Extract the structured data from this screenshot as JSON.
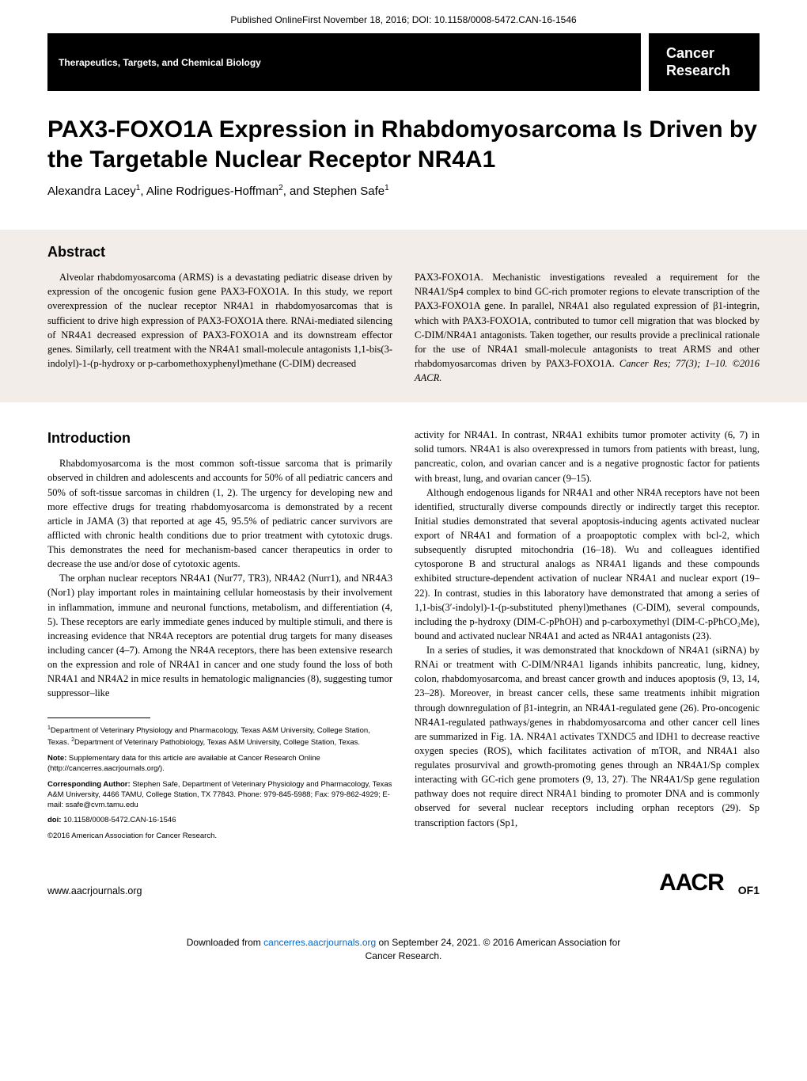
{
  "online_first": "Published OnlineFirst November 18, 2016; DOI: 10.1158/0008-5472.CAN-16-1546",
  "section_label": "Therapeutics, Targets, and Chemical Biology",
  "journal_name_l1": "Cancer",
  "journal_name_l2": "Research",
  "title": "PAX3-FOXO1A Expression in Rhabdomyosarcoma Is Driven by the Targetable Nuclear Receptor NR4A1",
  "author1": "Alexandra Lacey",
  "author1_sup": "1",
  "author2": ", Aline Rodrigues-Hoffman",
  "author2_sup": "2",
  "author3": ", and Stephen Safe",
  "author3_sup": "1",
  "abstract_heading": "Abstract",
  "abstract_left": "Alveolar rhabdomyosarcoma (ARMS) is a devastating pediatric disease driven by expression of the oncogenic fusion gene PAX3-FOXO1A. In this study, we report overexpression of the nuclear receptor NR4A1 in rhabdomyosarcomas that is sufficient to drive high expression of PAX3-FOXO1A there. RNAi-mediated silencing of NR4A1 decreased expression of PAX3-FOXO1A and its downstream effector genes. Similarly, cell treatment with the NR4A1 small-molecule antagonists 1,1-bis(3-indolyl)-1-(p-hydroxy or p-carbomethoxyphenyl)methane (C-DIM) decreased",
  "abstract_right_main": "PAX3-FOXO1A. Mechanistic investigations revealed a requirement for the NR4A1/Sp4 complex to bind GC-rich promoter regions to elevate transcription of the PAX3-FOXO1A gene. In parallel, NR4A1 also regulated expression of β1-integrin, which with PAX3-FOXO1A, contributed to tumor cell migration that was blocked by C-DIM/NR4A1 antagonists. Taken together, our results provide a preclinical rationale for the use of NR4A1 small-molecule antagonists to treat ARMS and other rhabdomyosarcomas driven by PAX3-FOXO1A. ",
  "abstract_citation": "Cancer Res; 77(3); 1–10. ©2016 AACR.",
  "intro_heading": "Introduction",
  "intro_p1": "Rhabdomyosarcoma is the most common soft-tissue sarcoma that is primarily observed in children and adolescents and accounts for 50% of all pediatric cancers and 50% of soft-tissue sarcomas in children (1, 2). The urgency for developing new and more effective drugs for treating rhabdomyosarcoma is demonstrated by a recent article in JAMA (3) that reported at age 45, 95.5% of pediatric cancer survivors are afflicted with chronic health conditions due to prior treatment with cytotoxic drugs. This demonstrates the need for mechanism-based cancer therapeutics in order to decrease the use and/or dose of cytotoxic agents.",
  "intro_p2": "The orphan nuclear receptors NR4A1 (Nur77, TR3), NR4A2 (Nurr1), and NR4A3 (Nor1) play important roles in maintaining cellular homeostasis by their involvement in inflammation, immune and neuronal functions, metabolism, and differentiation (4, 5). These receptors are early immediate genes induced by multiple stimuli, and there is increasing evidence that NR4A receptors are potential drug targets for many diseases including cancer (4–7). Among the NR4A receptors, there has been extensive research on the expression and role of NR4A1 in cancer and one study found the loss of both NR4A1 and NR4A2 in mice results in hematologic malignancies (8), suggesting tumor suppressor–like",
  "right_p1": "activity for NR4A1. In contrast, NR4A1 exhibits tumor promoter activity (6, 7) in solid tumors. NR4A1 is also overexpressed in tumors from patients with breast, lung, pancreatic, colon, and ovarian cancer and is a negative prognostic factor for patients with breast, lung, and ovarian cancer (9–15).",
  "right_p2": "Although endogenous ligands for NR4A1 and other NR4A receptors have not been identified, structurally diverse compounds directly or indirectly target this receptor. Initial studies demonstrated that several apoptosis-inducing agents activated nuclear export of NR4A1 and formation of a proapoptotic complex with bcl-2, which subsequently disrupted mitochondria (16–18). Wu and colleagues identified cytosporone B and structural analogs as NR4A1 ligands and these compounds exhibited structure-dependent activation of nuclear NR4A1 and nuclear export (19–22). In contrast, studies in this laboratory have demonstrated that among a series of 1,1-bis(3′-indolyl)-1-(p-substituted phenyl)methanes (C-DIM), several compounds, including the p-hydroxy (DIM-C-pPhOH) and p-carboxymethyl (DIM-C-pPhCO₂Me), bound and activated nuclear NR4A1 and acted as NR4A1 antagonists (23).",
  "right_p3": "In a series of studies, it was demonstrated that knockdown of NR4A1 (siRNA) by RNAi or treatment with C-DIM/NR4A1 ligands inhibits pancreatic, lung, kidney, colon, rhabdomyosarcoma, and breast cancer growth and induces apoptosis (9, 13, 14, 23–28). Moreover, in breast cancer cells, these same treatments inhibit migration through downregulation of β1-integrin, an NR4A1-regulated gene (26). Pro-oncogenic NR4A1-regulated pathways/genes in rhabdomyosarcoma and other cancer cell lines are summarized in Fig. 1A. NR4A1 activates TXNDC5 and IDH1 to decrease reactive oxygen species (ROS), which facilitates activation of mTOR, and NR4A1 also regulates prosurvival and growth-promoting genes through an NR4A1/Sp complex interacting with GC-rich gene promoters (9, 13, 27). The NR4A1/Sp gene regulation pathway does not require direct NR4A1 binding to promoter DNA and is commonly observed for several nuclear receptors including orphan receptors (29). Sp transcription factors (Sp1,",
  "fn_affil": "Department of Veterinary Physiology and Pharmacology, Texas A&M University, College Station, Texas. ",
  "fn_affil2": "Department of Veterinary Pathobiology, Texas A&M University, College Station, Texas.",
  "fn_note_label": "Note: ",
  "fn_note": "Supplementary data for this article are available at Cancer Research Online (http://cancerres.aacrjournals.org/).",
  "fn_corr_label": "Corresponding Author: ",
  "fn_corr": "Stephen Safe, Department of Veterinary Physiology and Pharmacology, Texas A&M University, 4466 TAMU, College Station, TX 77843. Phone: 979-845-5988; Fax: 979-862-4929; E-mail: ssafe@cvm.tamu.edu",
  "fn_doi_label": "doi: ",
  "fn_doi": "10.1158/0008-5472.CAN-16-1546",
  "fn_copyright": "©2016 American Association for Cancer Research.",
  "footer_url": "www.aacrjournals.org",
  "aacr": "AACR",
  "page_num": "OF1",
  "download_pre": "Downloaded from ",
  "download_link": "cancerres.aacrjournals.org",
  "download_post": " on September 24, 2021. © 2016 American Association for",
  "download_l2": "Cancer Research."
}
